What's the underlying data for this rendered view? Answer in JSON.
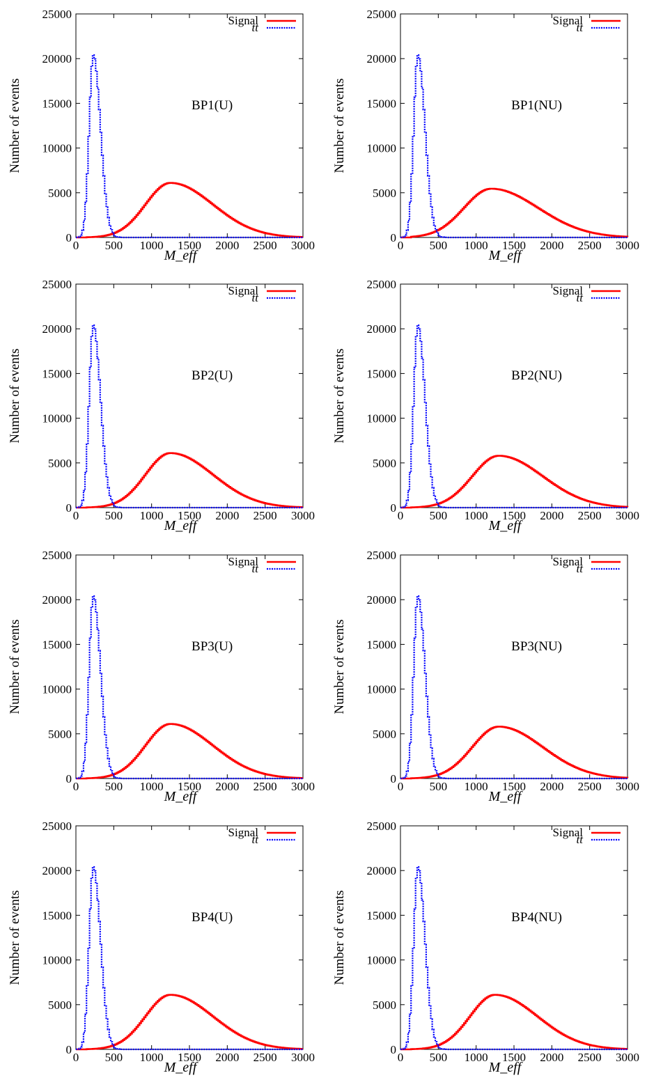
{
  "chart_data": [
    {
      "type": "line",
      "annotation": "BP1(U)",
      "xlabel": "M_eff",
      "ylabel": "Number of events",
      "xlim": [
        0,
        3000
      ],
      "ylim": [
        0,
        25000
      ],
      "xticks": [
        0,
        500,
        1000,
        1500,
        2000,
        2500,
        3000
      ],
      "yticks": [
        0,
        5000,
        10000,
        15000,
        20000,
        25000
      ],
      "legend_position": "top-right",
      "series": [
        {
          "name": "Signal",
          "color": "#ff0000",
          "style": "solid",
          "peak_x": 1250,
          "peak_y": 6100,
          "width_left": 330,
          "width_right": 560,
          "start_x": 150
        },
        {
          "name": "tt",
          "color": "#0000ff",
          "style": "dotted",
          "peak_x": 230,
          "peak_y": 20400,
          "width_left": 55,
          "width_right": 95,
          "start_x": 0
        }
      ]
    },
    {
      "type": "line",
      "annotation": "BP1(NU)",
      "xlabel": "M_eff",
      "ylabel": "Number of events",
      "xlim": [
        0,
        3000
      ],
      "ylim": [
        0,
        25000
      ],
      "xticks": [
        0,
        500,
        1000,
        1500,
        2000,
        2500,
        3000
      ],
      "yticks": [
        0,
        5000,
        10000,
        15000,
        20000,
        25000
      ],
      "legend_position": "top-right",
      "series": [
        {
          "name": "Signal",
          "color": "#ff0000",
          "style": "solid",
          "peak_x": 1200,
          "peak_y": 5450,
          "width_left": 360,
          "width_right": 620,
          "start_x": 150
        },
        {
          "name": "tt",
          "color": "#0000ff",
          "style": "dotted",
          "peak_x": 230,
          "peak_y": 20400,
          "width_left": 55,
          "width_right": 95,
          "start_x": 0
        }
      ]
    },
    {
      "type": "line",
      "annotation": "BP2(U)",
      "xlabel": "M_eff",
      "ylabel": "Number of events",
      "xlim": [
        0,
        3000
      ],
      "ylim": [
        0,
        25000
      ],
      "xticks": [
        0,
        500,
        1000,
        1500,
        2000,
        2500,
        3000
      ],
      "yticks": [
        0,
        5000,
        10000,
        15000,
        20000,
        25000
      ],
      "legend_position": "top-right",
      "series": [
        {
          "name": "Signal",
          "color": "#ff0000",
          "style": "solid",
          "peak_x": 1250,
          "peak_y": 6100,
          "width_left": 330,
          "width_right": 560,
          "start_x": 150
        },
        {
          "name": "tt",
          "color": "#0000ff",
          "style": "dotted",
          "peak_x": 230,
          "peak_y": 20400,
          "width_left": 55,
          "width_right": 95,
          "start_x": 0
        }
      ]
    },
    {
      "type": "line",
      "annotation": "BP2(NU)",
      "xlabel": "M_eff",
      "ylabel": "Number of events",
      "xlim": [
        0,
        3000
      ],
      "ylim": [
        0,
        25000
      ],
      "xticks": [
        0,
        500,
        1000,
        1500,
        2000,
        2500,
        3000
      ],
      "yticks": [
        0,
        5000,
        10000,
        15000,
        20000,
        25000
      ],
      "legend_position": "top-right",
      "series": [
        {
          "name": "Signal",
          "color": "#ff0000",
          "style": "solid",
          "peak_x": 1300,
          "peak_y": 5800,
          "width_left": 350,
          "width_right": 580,
          "start_x": 150
        },
        {
          "name": "tt",
          "color": "#0000ff",
          "style": "dotted",
          "peak_x": 230,
          "peak_y": 20400,
          "width_left": 55,
          "width_right": 95,
          "start_x": 0
        }
      ]
    },
    {
      "type": "line",
      "annotation": "BP3(U)",
      "xlabel": "M_eff",
      "ylabel": "Number of events",
      "xlim": [
        0,
        3000
      ],
      "ylim": [
        0,
        25000
      ],
      "xticks": [
        0,
        500,
        1000,
        1500,
        2000,
        2500,
        3000
      ],
      "yticks": [
        0,
        5000,
        10000,
        15000,
        20000,
        25000
      ],
      "legend_position": "top-right",
      "series": [
        {
          "name": "Signal",
          "color": "#ff0000",
          "style": "solid",
          "peak_x": 1250,
          "peak_y": 6100,
          "width_left": 330,
          "width_right": 560,
          "start_x": 150
        },
        {
          "name": "tt",
          "color": "#0000ff",
          "style": "dotted",
          "peak_x": 230,
          "peak_y": 20400,
          "width_left": 55,
          "width_right": 95,
          "start_x": 0
        }
      ]
    },
    {
      "type": "line",
      "annotation": "BP3(NU)",
      "xlabel": "M_eff",
      "ylabel": "Number of events",
      "xlim": [
        0,
        3000
      ],
      "ylim": [
        0,
        25000
      ],
      "xticks": [
        0,
        500,
        1000,
        1500,
        2000,
        2500,
        3000
      ],
      "yticks": [
        0,
        5000,
        10000,
        15000,
        20000,
        25000
      ],
      "legend_position": "top-right",
      "series": [
        {
          "name": "Signal",
          "color": "#ff0000",
          "style": "solid",
          "peak_x": 1300,
          "peak_y": 5800,
          "width_left": 350,
          "width_right": 580,
          "start_x": 150
        },
        {
          "name": "tt",
          "color": "#0000ff",
          "style": "dotted",
          "peak_x": 230,
          "peak_y": 20400,
          "width_left": 55,
          "width_right": 95,
          "start_x": 0
        }
      ]
    },
    {
      "type": "line",
      "annotation": "BP4(U)",
      "xlabel": "M_eff",
      "ylabel": "Number of events",
      "xlim": [
        0,
        3000
      ],
      "ylim": [
        0,
        25000
      ],
      "xticks": [
        0,
        500,
        1000,
        1500,
        2000,
        2500,
        3000
      ],
      "yticks": [
        0,
        5000,
        10000,
        15000,
        20000,
        25000
      ],
      "legend_position": "top-right",
      "series": [
        {
          "name": "Signal",
          "color": "#ff0000",
          "style": "solid",
          "peak_x": 1250,
          "peak_y": 6100,
          "width_left": 330,
          "width_right": 560,
          "start_x": 150
        },
        {
          "name": "tt",
          "color": "#0000ff",
          "style": "dotted",
          "peak_x": 230,
          "peak_y": 20400,
          "width_left": 55,
          "width_right": 95,
          "start_x": 0
        }
      ]
    },
    {
      "type": "line",
      "annotation": "BP4(NU)",
      "xlabel": "M_eff",
      "ylabel": "Number of events",
      "xlim": [
        0,
        3000
      ],
      "ylim": [
        0,
        25000
      ],
      "xticks": [
        0,
        500,
        1000,
        1500,
        2000,
        2500,
        3000
      ],
      "yticks": [
        0,
        5000,
        10000,
        15000,
        20000,
        25000
      ],
      "legend_position": "top-right",
      "series": [
        {
          "name": "Signal",
          "color": "#ff0000",
          "style": "solid",
          "peak_x": 1250,
          "peak_y": 6100,
          "width_left": 330,
          "width_right": 560,
          "start_x": 150
        },
        {
          "name": "tt",
          "color": "#0000ff",
          "style": "dotted",
          "peak_x": 230,
          "peak_y": 20400,
          "width_left": 55,
          "width_right": 95,
          "start_x": 0
        }
      ]
    }
  ]
}
